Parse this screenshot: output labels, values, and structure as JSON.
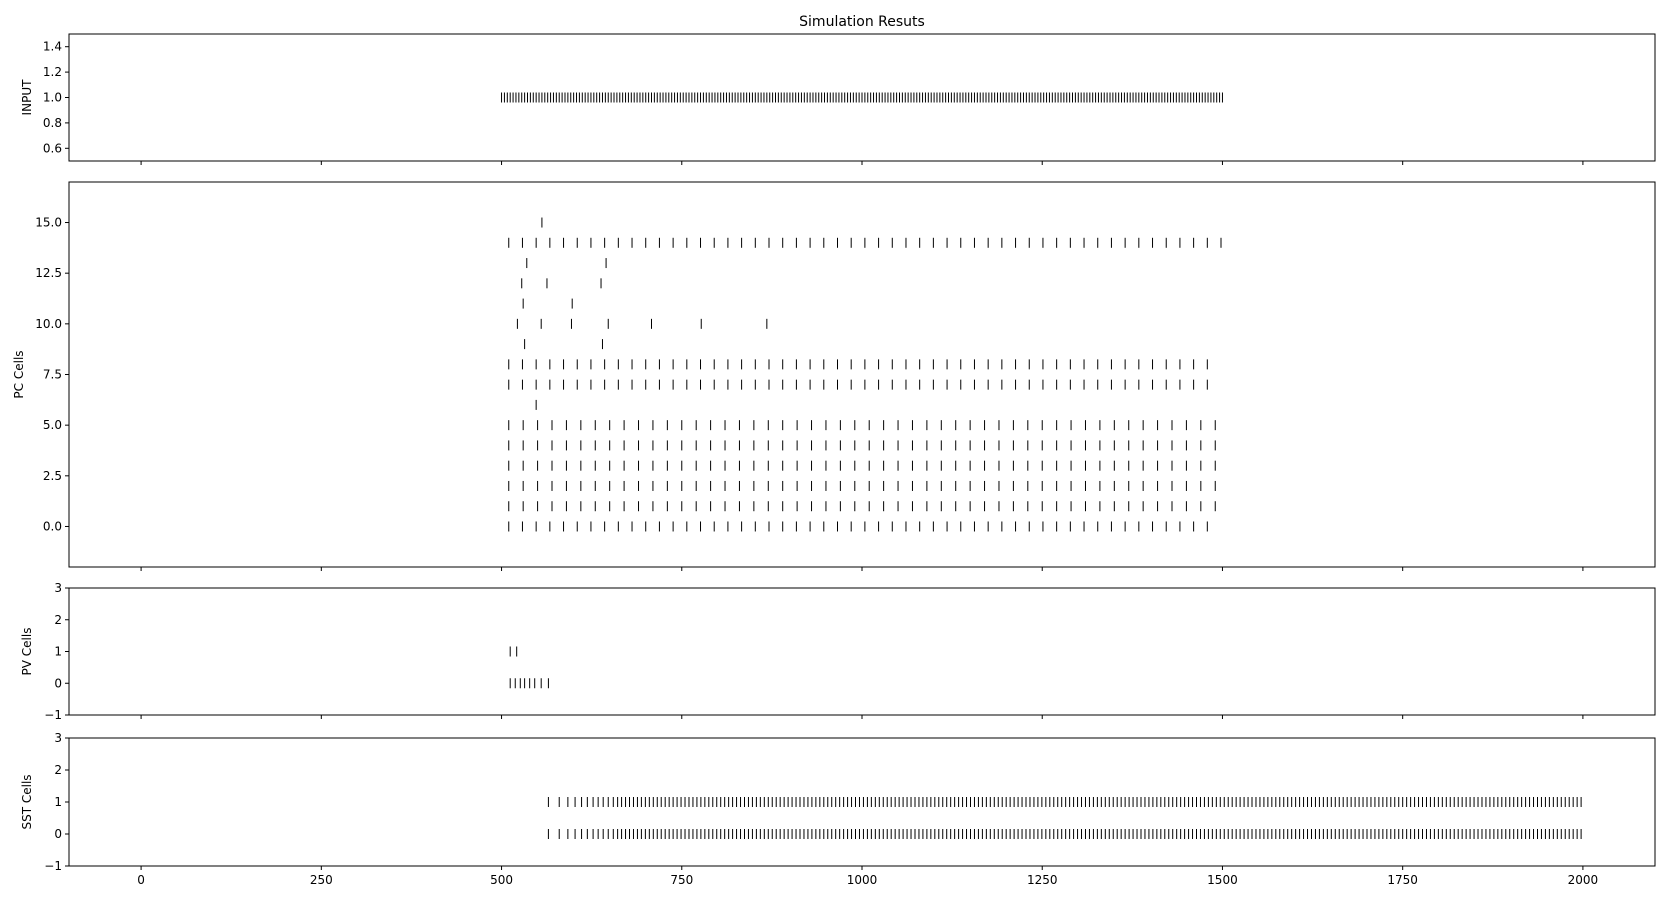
{
  "chart_data": {
    "type": "scatter",
    "title": "Simulation Resuts",
    "xlim": [
      -100,
      2100
    ],
    "x_ticks": [
      0,
      250,
      500,
      750,
      1000,
      1250,
      1500,
      1750,
      2000
    ],
    "panels": [
      {
        "id": "input",
        "ylabel": "INPUT",
        "ylim": [
          0.5,
          1.5
        ],
        "y_ticks": [
          0.6,
          0.8,
          1.0,
          1.2,
          1.4
        ],
        "y_tick_labels": [
          "0.6",
          "0.8",
          "1.0",
          "1.2",
          "1.4"
        ],
        "trains": [
          {
            "neuron": 1.0,
            "start": 500,
            "end": 1500,
            "period": 4
          }
        ]
      },
      {
        "id": "pc",
        "ylabel": "PC Cells",
        "ylim": [
          -2,
          17
        ],
        "y_ticks": [
          0,
          2.5,
          5,
          7.5,
          10,
          12.5,
          15
        ],
        "y_tick_labels": [
          "0.0",
          "2.5",
          "5.0",
          "7.5",
          "10.0",
          "12.5",
          "15.0"
        ],
        "trains": [
          {
            "neuron": 0,
            "start": 510,
            "end": 1492,
            "period": 19
          },
          {
            "neuron": 1,
            "start": 510,
            "end": 1497,
            "period": 20
          },
          {
            "neuron": 2,
            "start": 510,
            "end": 1497,
            "period": 20
          },
          {
            "neuron": 3,
            "start": 510,
            "end": 1505,
            "period": 20
          },
          {
            "neuron": 4,
            "start": 510,
            "end": 1497,
            "period": 20
          },
          {
            "neuron": 5,
            "start": 510,
            "end": 1490,
            "period": 20
          },
          {
            "neuron": 7,
            "start": 510,
            "end": 1485,
            "period": 19
          },
          {
            "neuron": 8,
            "start": 510,
            "end": 1492,
            "period": 19
          },
          {
            "neuron": 14,
            "start": 510,
            "end": 1500,
            "period": 19
          }
        ],
        "spikes": [
          {
            "neuron": 15,
            "times": [
              556
            ]
          },
          {
            "neuron": 13,
            "times": [
              535,
              645
            ]
          },
          {
            "neuron": 12,
            "times": [
              528,
              563,
              638
            ]
          },
          {
            "neuron": 11,
            "times": [
              530,
              598
            ]
          },
          {
            "neuron": 10,
            "times": [
              522,
              555,
              597,
              648,
              708,
              777,
              868
            ]
          },
          {
            "neuron": 9,
            "times": [
              532,
              640
            ]
          },
          {
            "neuron": 6,
            "times": [
              548
            ]
          }
        ]
      },
      {
        "id": "pv",
        "ylabel": "PV Cells",
        "ylim": [
          -1,
          3
        ],
        "y_ticks": [
          -1,
          0,
          1,
          2,
          3
        ],
        "y_tick_labels": [
          "−1",
          "0",
          "1",
          "2",
          "3"
        ],
        "spikes": [
          {
            "neuron": 1,
            "times": [
              512,
              521
            ]
          },
          {
            "neuron": 0,
            "times": [
              512,
              519,
              526,
              532,
              539,
              546,
              555,
              565
            ]
          }
        ]
      },
      {
        "id": "sst",
        "ylabel": "SST Cells",
        "ylim": [
          -1,
          3
        ],
        "y_ticks": [
          -1,
          0,
          1,
          2,
          3
        ],
        "y_tick_labels": [
          "−1",
          "0",
          "1",
          "2",
          "3"
        ],
        "spikes": [
          {
            "neuron": 1,
            "times": [
              565,
              580,
              592,
              602,
              611,
              619,
              627,
              634,
              641,
              648,
              655
            ]
          },
          {
            "neuron": 0,
            "times": [
              565,
              580,
              592,
              602,
              611,
              619,
              627,
              634,
              641,
              648,
              655
            ]
          }
        ],
        "trains": [
          {
            "neuron": 1,
            "start": 661,
            "end": 2000,
            "period": 5.5
          },
          {
            "neuron": 0,
            "start": 661,
            "end": 2000,
            "period": 5.5
          }
        ]
      }
    ]
  }
}
